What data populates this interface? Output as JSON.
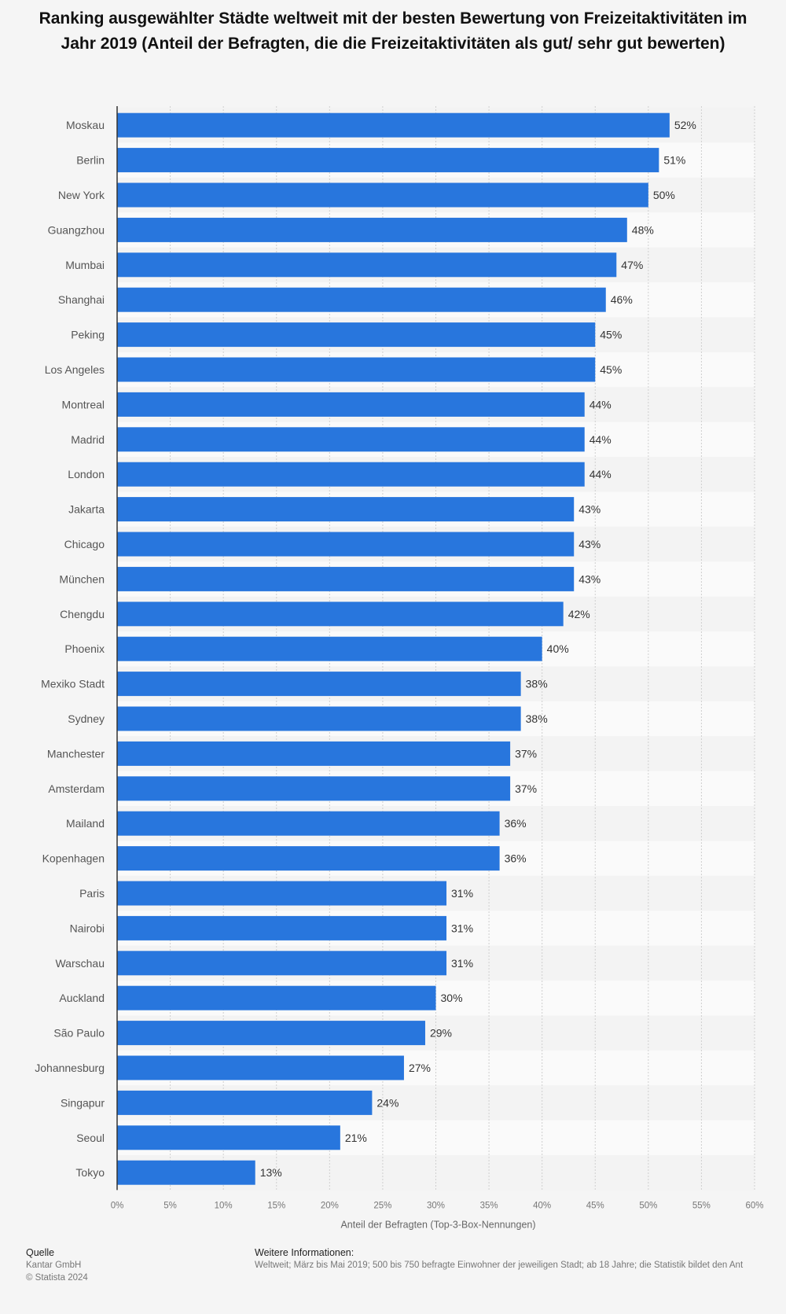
{
  "chart_data": {
    "type": "bar",
    "orientation": "horizontal",
    "title": "Ranking ausgewählter Städte weltweit mit der besten Bewertung von Freizeitaktivitäten im Jahr 2019 (Anteil der Befragten, die die Freizeitaktivitäten als gut/ sehr gut bewerten)",
    "xlabel": "Anteil der Befragten (Top-3-Box-Nennungen)",
    "ylabel": "",
    "xlim": [
      0,
      60
    ],
    "x_ticks": [
      "0%",
      "5%",
      "10%",
      "15%",
      "20%",
      "25%",
      "30%",
      "35%",
      "40%",
      "45%",
      "50%",
      "55%",
      "60%"
    ],
    "grid": true,
    "bar_color": "#2876dd",
    "categories": [
      "Moskau",
      "Berlin",
      "New York",
      "Guangzhou",
      "Mumbai",
      "Shanghai",
      "Peking",
      "Los Angeles",
      "Montreal",
      "Madrid",
      "London",
      "Jakarta",
      "Chicago",
      "München",
      "Chengdu",
      "Phoenix",
      "Mexiko Stadt",
      "Sydney",
      "Manchester",
      "Amsterdam",
      "Mailand",
      "Kopenhagen",
      "Paris",
      "Nairobi",
      "Warschau",
      "Auckland",
      "São Paulo",
      "Johannesburg",
      "Singapur",
      "Seoul",
      "Tokyo"
    ],
    "values": [
      52,
      51,
      50,
      48,
      47,
      46,
      45,
      45,
      44,
      44,
      44,
      43,
      43,
      43,
      42,
      40,
      38,
      38,
      37,
      37,
      36,
      36,
      31,
      31,
      31,
      30,
      29,
      27,
      24,
      21,
      13
    ],
    "value_labels": [
      "52%",
      "51%",
      "50%",
      "48%",
      "47%",
      "46%",
      "45%",
      "45%",
      "44%",
      "44%",
      "44%",
      "43%",
      "43%",
      "43%",
      "42%",
      "40%",
      "38%",
      "38%",
      "37%",
      "37%",
      "36%",
      "36%",
      "31%",
      "31%",
      "31%",
      "30%",
      "29%",
      "27%",
      "24%",
      "21%",
      "13%"
    ]
  },
  "footer": {
    "source_heading": "Quelle",
    "source_name": "Kantar GmbH",
    "copyright": "© Statista 2024",
    "info_heading": "Weitere Informationen:",
    "info_text": "Weltweit; März bis Mai 2019; 500 bis 750 befragte Einwohner der jeweiligen Stadt; ab 18 Jahre; die Statistik bildet den Ant"
  }
}
